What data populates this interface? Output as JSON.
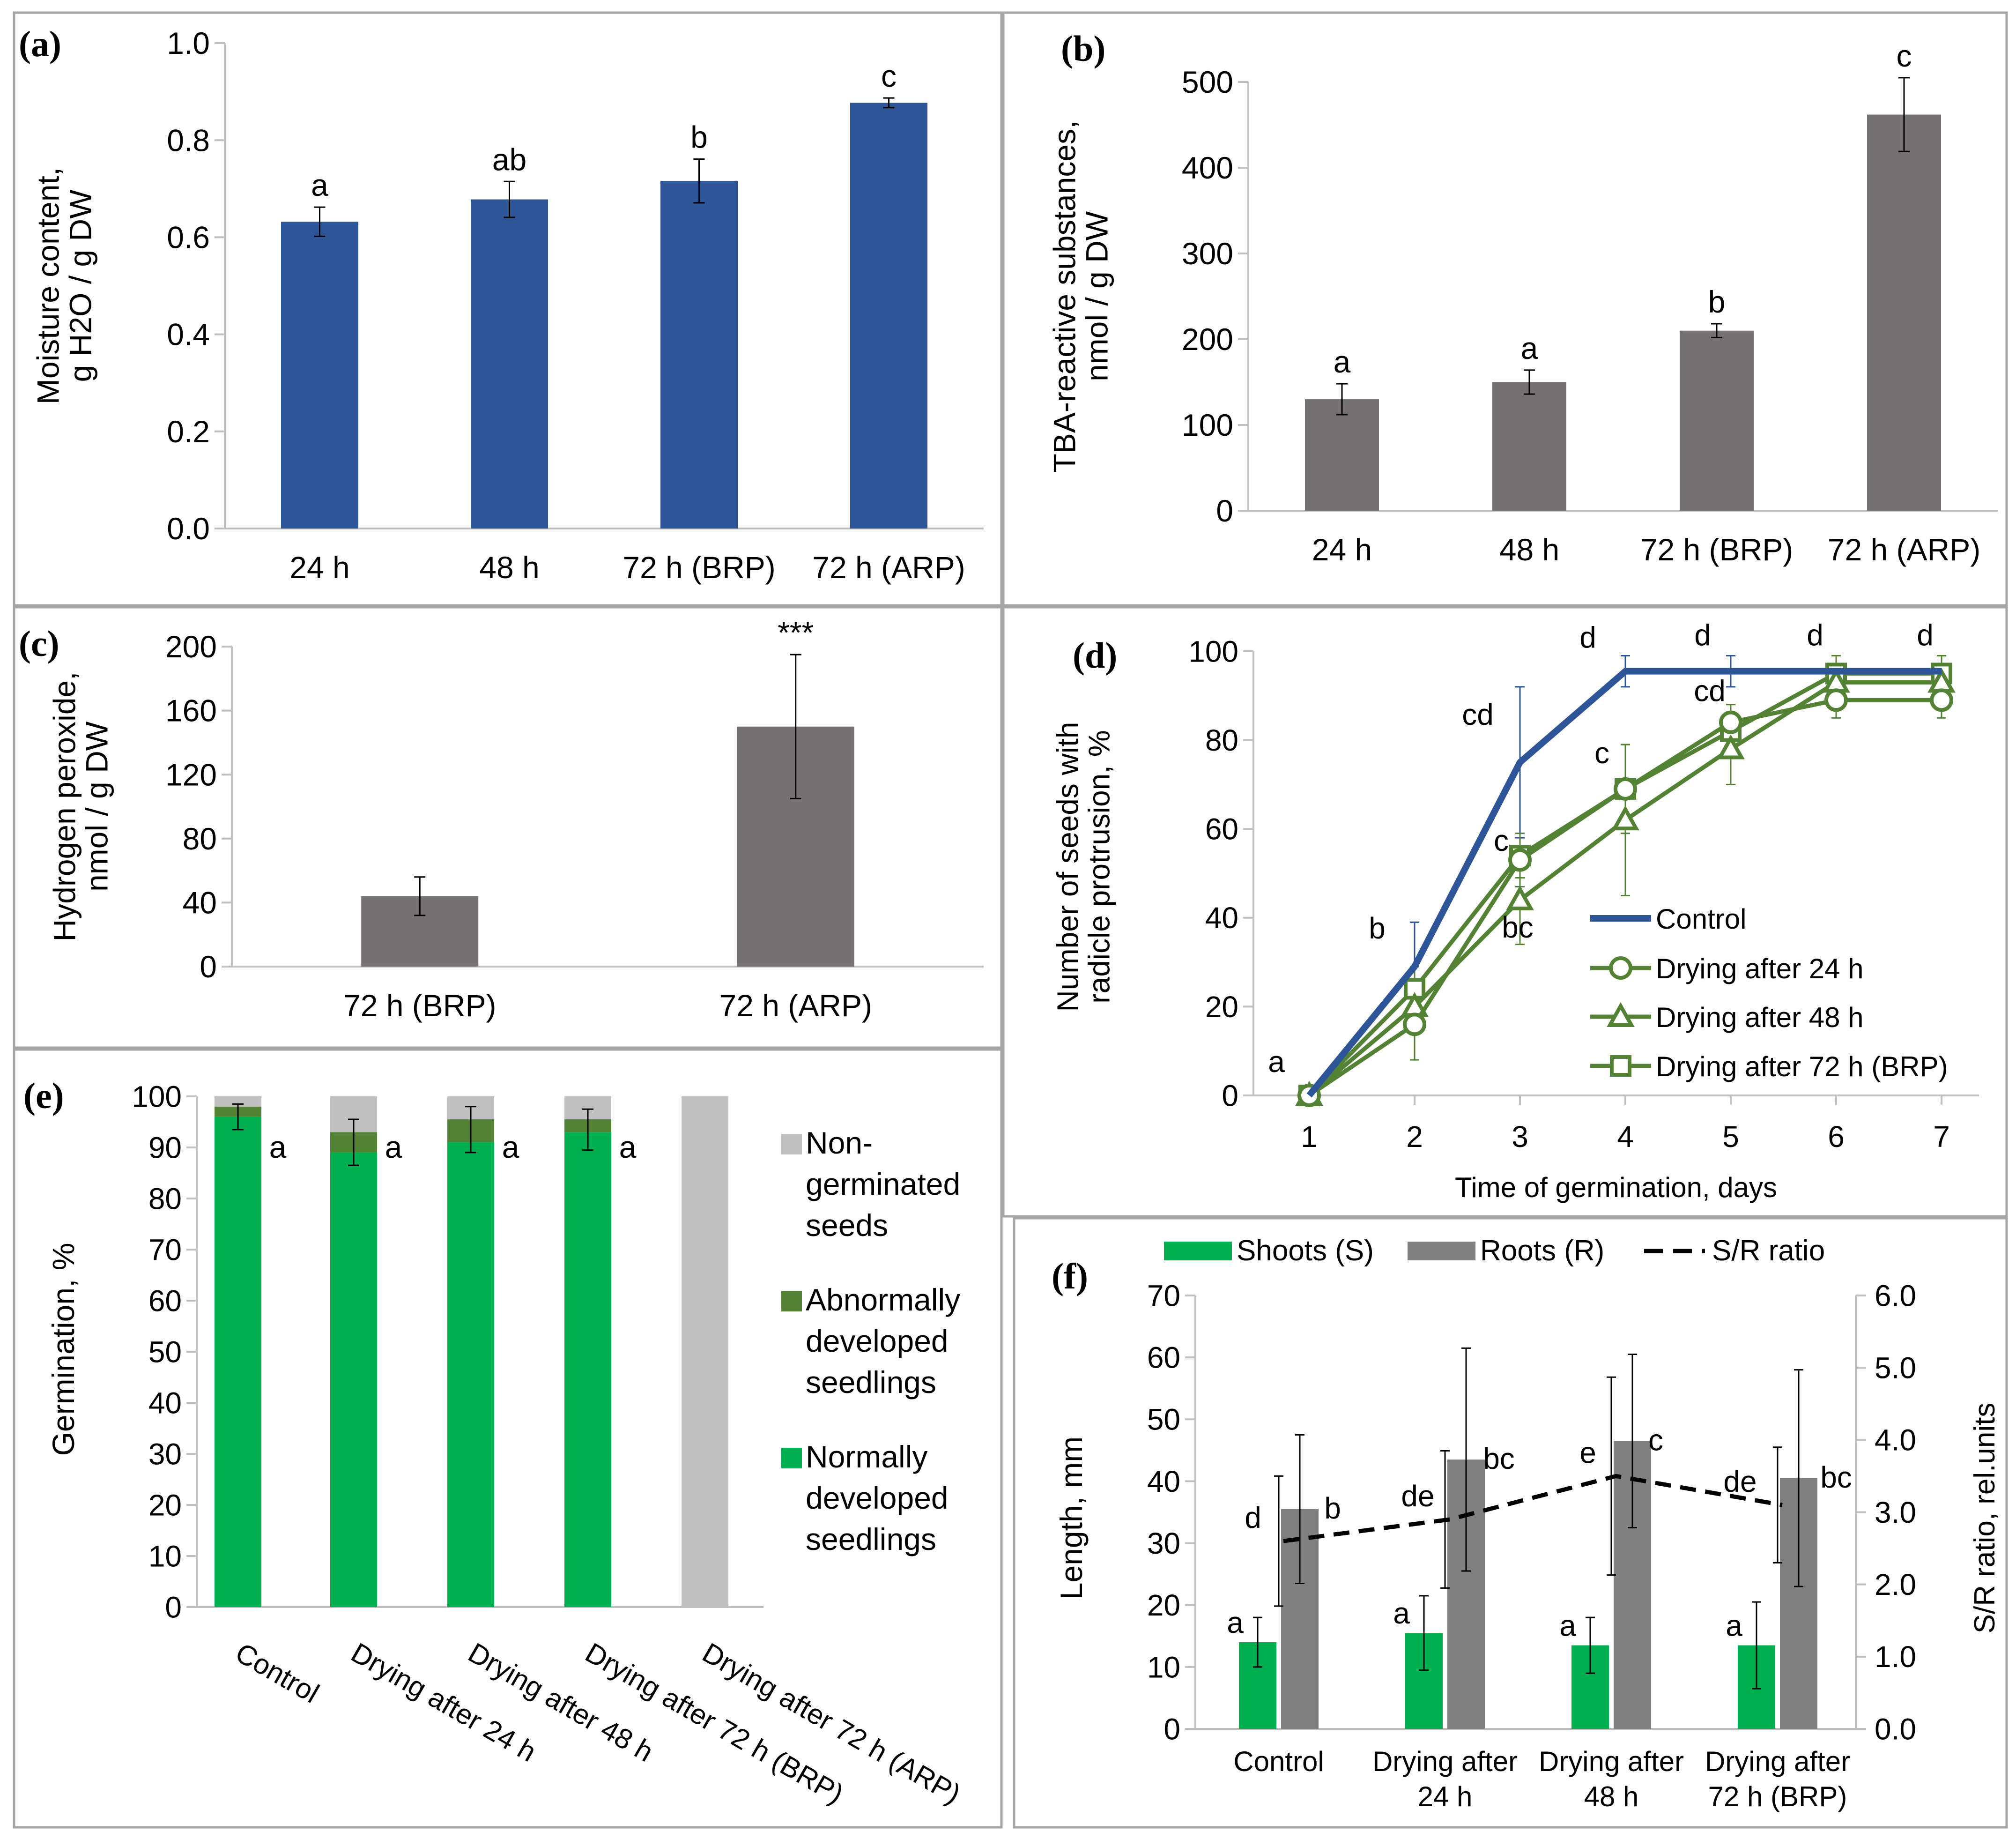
{
  "chart_data": [
    {
      "id": "a",
      "panel_label": "(a)",
      "type": "bar",
      "categories": [
        "24 h",
        "48 h",
        "72 h (BRP)",
        "72 h (ARP)"
      ],
      "values": [
        0.632,
        0.678,
        0.716,
        0.877
      ],
      "errors": [
        0.03,
        0.037,
        0.045,
        0.01
      ],
      "letters": [
        "a",
        "ab",
        "b",
        "c"
      ],
      "ylabel_lines": [
        "Moisture content,",
        "g H2O / g DW"
      ],
      "ylim": [
        0,
        1.0
      ],
      "yticks": [
        "0.0",
        "0.2",
        "0.4",
        "0.6",
        "0.8",
        "1.0"
      ],
      "color": "#2e5597"
    },
    {
      "id": "b",
      "panel_label": "(b)",
      "type": "bar",
      "categories": [
        "24 h",
        "48 h",
        "72 h (BRP)",
        "72 h (ARP)"
      ],
      "values": [
        130,
        150,
        210,
        462
      ],
      "errors": [
        18,
        14,
        8,
        43
      ],
      "letters": [
        "a",
        "a",
        "b",
        "c"
      ],
      "ylabel_lines": [
        "TBA-reactive substances,",
        "nmol / g DW"
      ],
      "ylim": [
        0,
        500
      ],
      "yticks": [
        "0",
        "100",
        "200",
        "300",
        "400",
        "500"
      ],
      "color": "#767171"
    },
    {
      "id": "c",
      "panel_label": "(c)",
      "type": "bar",
      "categories": [
        "72 h (BRP)",
        "72 h (ARP)"
      ],
      "values": [
        44,
        150
      ],
      "errors": [
        12,
        45
      ],
      "letters": [
        "",
        "***"
      ],
      "ylabel_lines": [
        "Hydrogen peroxide,",
        "nmol / g DW"
      ],
      "ylim": [
        0,
        200
      ],
      "yticks": [
        "0",
        "40",
        "80",
        "120",
        "160",
        "200"
      ],
      "color": "#767171"
    },
    {
      "id": "d",
      "panel_label": "(d)",
      "type": "line",
      "x": [
        1,
        2,
        3,
        4,
        5,
        6,
        7
      ],
      "xticks": [
        "1",
        "2",
        "3",
        "4",
        "5",
        "6",
        "7"
      ],
      "xlabel": "Time of germination, days",
      "ylabel_lines": [
        "Number of seeds with",
        "radicle protrusion, %"
      ],
      "ylim": [
        0,
        100
      ],
      "yticks": [
        "0",
        "20",
        "40",
        "60",
        "80",
        "100"
      ],
      "series": [
        {
          "name": "Control",
          "values": [
            0,
            29,
            75,
            95.5,
            95.5,
            95.5,
            95.5
          ],
          "errors": [
            0,
            10,
            17,
            3.5,
            3.5,
            3.5,
            3.5
          ],
          "color": "#2e5597",
          "marker": "none",
          "width": 14
        },
        {
          "name": "Drying after 24 h",
          "values": [
            0,
            16,
            53,
            69,
            84,
            89,
            89
          ],
          "errors": [
            0,
            8,
            6,
            10,
            4,
            4,
            4
          ],
          "color": "#548235",
          "marker": "circle",
          "width": 9
        },
        {
          "name": "Drying after 48 h",
          "values": [
            0,
            20,
            44,
            62,
            78,
            93,
            93
          ],
          "errors": [
            0,
            5,
            10,
            17,
            8,
            4,
            4
          ],
          "color": "#548235",
          "marker": "triangle",
          "width": 9
        },
        {
          "name": "Drying after 72 h (BRP)",
          "values": [
            0,
            24,
            54,
            69,
            82,
            95,
            95
          ],
          "errors": [
            0,
            5,
            5,
            10,
            4,
            4,
            4
          ],
          "color": "#548235",
          "marker": "square",
          "width": 9
        }
      ],
      "annotations": [
        {
          "text": "a",
          "x": 1,
          "y": 0
        },
        {
          "text": "b",
          "x": 2,
          "y": 29
        },
        {
          "text": "cd",
          "x": 3,
          "y": 75
        },
        {
          "text": "c",
          "x": 3,
          "y": 54
        },
        {
          "text": "bc",
          "x": 3,
          "y": 44
        },
        {
          "text": "d",
          "x": 4,
          "y": 95.5
        },
        {
          "text": "c",
          "x": 4,
          "y": 69
        },
        {
          "text": "d",
          "x": 5,
          "y": 95.5
        },
        {
          "text": "cd",
          "x": 5,
          "y": 84
        },
        {
          "text": "d",
          "x": 6,
          "y": 95.5
        },
        {
          "text": "d",
          "x": 7,
          "y": 95.5
        }
      ],
      "legend_position": "bottom-right"
    },
    {
      "id": "e",
      "panel_label": "(e)",
      "type": "bar",
      "stacked": true,
      "categories": [
        "Control",
        "Drying after 24 h",
        "Drying after 48 h",
        "Drying after 72 h (BRP)",
        "Drying after 72 h (ARP)"
      ],
      "series": [
        {
          "name": "Normally developed seedlings",
          "values": [
            96,
            89,
            91,
            93,
            0
          ],
          "color": "#00b050"
        },
        {
          "name": "Abnormally developed seedlings",
          "values": [
            2,
            4,
            4.5,
            2.5,
            0
          ],
          "color": "#548235"
        },
        {
          "name": "Non-germinated seeds",
          "values": [
            2,
            7,
            4.5,
            4.5,
            100
          ],
          "color": "#c0c0c0"
        }
      ],
      "errors": [
        2.5,
        4.5,
        4.5,
        4,
        0
      ],
      "letters": [
        "a",
        "a",
        "a",
        "a",
        ""
      ],
      "ylabel": "Germination, %",
      "ylim": [
        0,
        100
      ],
      "yticks": [
        "0",
        "10",
        "20",
        "30",
        "40",
        "50",
        "60",
        "70",
        "80",
        "90",
        "100"
      ],
      "legend_lines": [
        [
          "Non-",
          "germinated",
          "seeds"
        ],
        [
          "Abnormally",
          "developed",
          "seedlings"
        ],
        [
          "Normally",
          "developed",
          "seedlings"
        ]
      ],
      "legend_position": "right"
    },
    {
      "id": "f",
      "panel_label": "(f)",
      "type": "bar",
      "categories_lines": [
        [
          "Control"
        ],
        [
          "Drying after",
          "24 h"
        ],
        [
          "Drying after",
          "48 h"
        ],
        [
          "Drying after",
          "72 h (BRP)"
        ]
      ],
      "series": [
        {
          "name": "Shoots (S)",
          "values": [
            14,
            15.5,
            13.5,
            13.5
          ],
          "errors": [
            4,
            6,
            4.5,
            7
          ],
          "letters": [
            "a",
            "a",
            "a",
            "a"
          ],
          "color": "#00b050"
        },
        {
          "name": "Roots (R)",
          "values": [
            35.5,
            43.5,
            46.5,
            40.5
          ],
          "errors": [
            12,
            18,
            14,
            17.5
          ],
          "letters": [
            "b",
            "bc",
            "c",
            "bc"
          ],
          "color": "#808080"
        }
      ],
      "ratio": {
        "name": "S/R ratio",
        "values": [
          2.6,
          2.9,
          3.5,
          3.1
        ],
        "errors": [
          0.9,
          0.95,
          1.37,
          0.8
        ],
        "letters": [
          "d",
          "de",
          "e",
          "de"
        ]
      },
      "ylabel": "Length, mm",
      "ylim": [
        0,
        70
      ],
      "yticks": [
        "0",
        "10",
        "20",
        "30",
        "40",
        "50",
        "60",
        "70"
      ],
      "y2label": "S/R ratio, rel.units",
      "y2lim": [
        0,
        6
      ],
      "y2ticks": [
        "0.0",
        "1.0",
        "2.0",
        "3.0",
        "4.0",
        "5.0",
        "6.0"
      ],
      "legend_position": "top"
    }
  ]
}
